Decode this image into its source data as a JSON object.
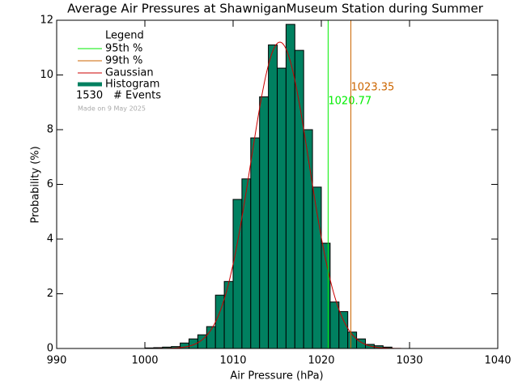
{
  "chart_data": {
    "type": "histogram",
    "title": "Average Air Pressures at ShawniganMuseum Station during Summer",
    "x_label": "Air Pressure (hPa)",
    "y_label": "Probability (%)",
    "bins": [
      1000,
      1001,
      1002,
      1003,
      1004,
      1005,
      1006,
      1007,
      1008,
      1009,
      1010,
      1011,
      1012,
      1013,
      1014,
      1015,
      1016,
      1017,
      1018,
      1019,
      1020,
      1021,
      1022,
      1023,
      1024,
      1025,
      1026,
      1027,
      1028
    ],
    "values": [
      0.02,
      0.03,
      0.05,
      0.07,
      0.2,
      0.35,
      0.5,
      0.8,
      1.95,
      2.45,
      5.45,
      6.2,
      7.7,
      9.2,
      11.1,
      10.25,
      11.85,
      10.9,
      8.0,
      5.9,
      3.85,
      1.7,
      1.35,
      0.6,
      0.35,
      0.15,
      0.1,
      0.05
    ],
    "color": "#008060",
    "histogram_name": "Histogram",
    "gaussian": {
      "name": "Gaussian",
      "color": "#cc0000",
      "mean": 1015.3,
      "sd": 3.3,
      "peak": 11.2
    },
    "percentiles": [
      {
        "name": "95th %",
        "value": 1020.77,
        "color": "#00ee00"
      },
      {
        "name": "99th %",
        "value": 1023.35,
        "color": "#cc6600"
      }
    ],
    "legend_title": "Legend",
    "events": {
      "count": 1530,
      "label": "# Events"
    },
    "note": "Made on 9 May 2025",
    "xlim": [
      990,
      1040
    ],
    "xticks": [
      990,
      1000,
      1010,
      1020,
      1030,
      1040
    ],
    "ylim": [
      0,
      12
    ],
    "yticks": [
      0,
      2,
      4,
      6,
      8,
      10,
      12
    ]
  }
}
